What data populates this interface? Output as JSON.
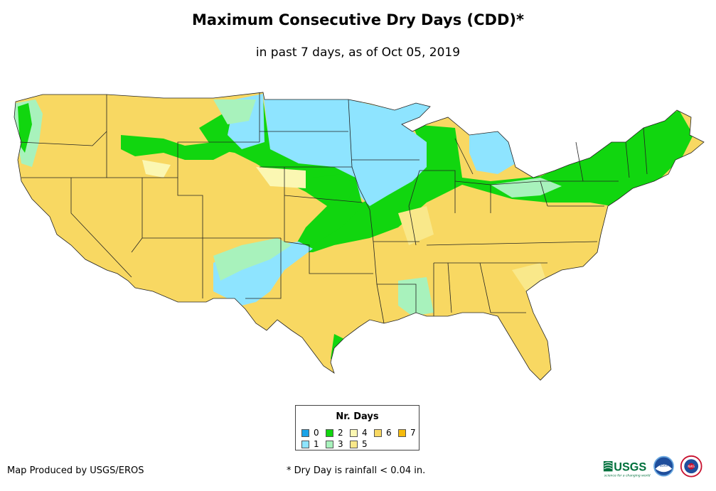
{
  "title": "Maximum Consecutive Dry Days (CDD)*",
  "subtitle": "in past 7 days, as of Oct 05, 2019",
  "legend": {
    "title": "Nr. Days",
    "items": [
      {
        "label": "0",
        "color": "#1aa3e8"
      },
      {
        "label": "1",
        "color": "#8ee4ff"
      },
      {
        "label": "2",
        "color": "#11d60f"
      },
      {
        "label": "3",
        "color": "#a8f2bc"
      },
      {
        "label": "4",
        "color": "#fbf7b2"
      },
      {
        "label": "5",
        "color": "#f9e88a"
      },
      {
        "label": "6",
        "color": "#f8d862"
      },
      {
        "label": "7",
        "color": "#f5bb0d"
      }
    ]
  },
  "credit": "Map Produced by USGS/EROS",
  "footnote": "* Dry Day is rainfall < 0.04 in.",
  "logos": {
    "usgs": "USGS",
    "usgs_tagline": "science for a changing world",
    "noaa": "NOAA",
    "nws": "NWS"
  },
  "colors": {
    "border": "#222222",
    "nodata": "#ffffff"
  }
}
